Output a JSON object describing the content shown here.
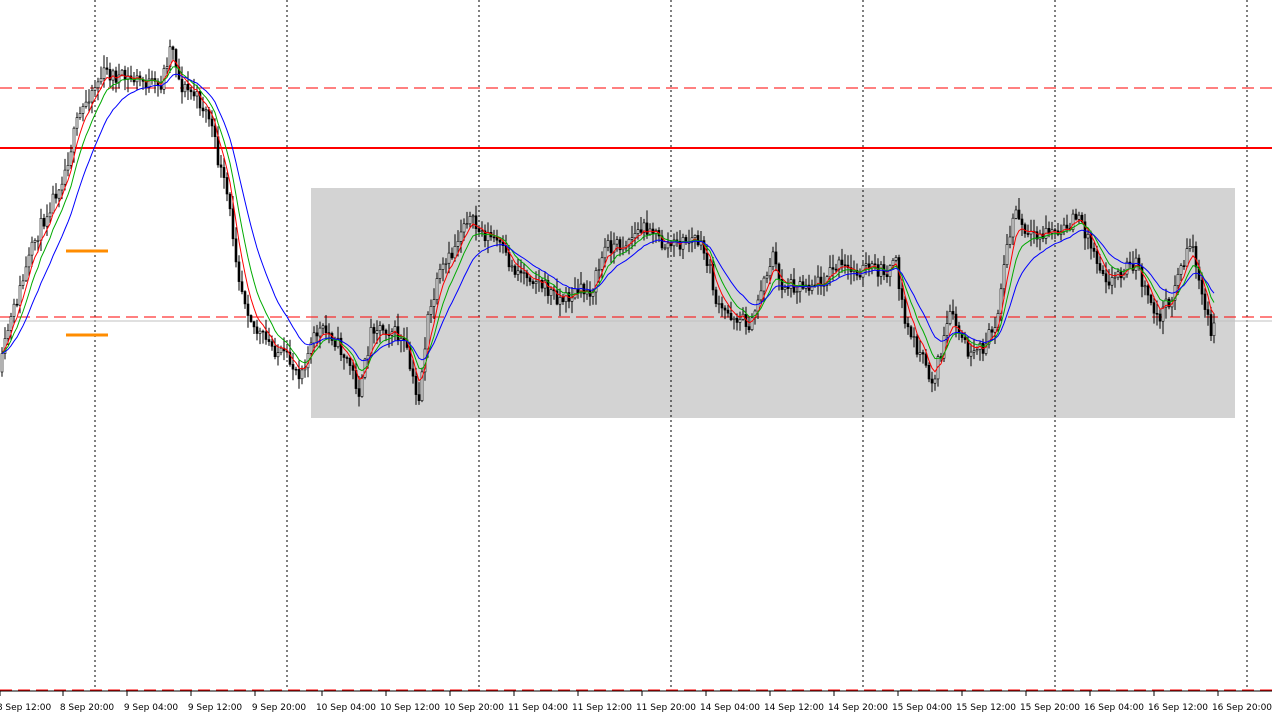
{
  "chart_data": {
    "type": "candlestick",
    "x_tick_labels": [
      "8 Sep 12:00",
      "8 Sep 20:00",
      "9 Sep 04:00",
      "9 Sep 12:00",
      "9 Sep 20:00",
      "10 Sep 04:00",
      "10 Sep 12:00",
      "10 Sep 20:00",
      "11 Sep 04:00",
      "11 Sep 12:00",
      "11 Sep 20:00",
      "14 Sep 04:00",
      "14 Sep 12:00",
      "14 Sep 20:00",
      "15 Sep 04:00",
      "15 Sep 12:00",
      "15 Sep 20:00",
      "16 Sep 04:00",
      "16 Sep 12:00",
      "16 Sep 20:00"
    ],
    "y_axis_labels_visible": false,
    "grid": "vertical dotted at day boundaries",
    "colors": {
      "background": "#ffffff",
      "candle": "#000000",
      "ma_fast": "#ff0000",
      "ma_mid": "#00aa00",
      "ma_slow": "#0000ff",
      "range_box": "#d3d3d3",
      "resistance_line": "#ff0000",
      "dashed_levels": "#ff0000",
      "markers": "#ff8c00",
      "grid": "#000000"
    },
    "series": [
      {
        "id": "ma_fast",
        "style": "line",
        "color": "#ff0000"
      },
      {
        "id": "ma_mid",
        "style": "line",
        "color": "#00aa00"
      },
      {
        "id": "ma_slow",
        "style": "line",
        "color": "#0000ff"
      }
    ],
    "annotations": {
      "horizontal_lines": [
        {
          "style": "solid",
          "color": "#ff0000"
        },
        {
          "style": "dashed",
          "color": "#ff0000"
        },
        {
          "style": "dashed",
          "color": "#ff0000"
        },
        {
          "style": "dashed",
          "color": "#ff0000"
        },
        {
          "style": "solid",
          "color": "#c0c0c0"
        }
      ],
      "range_box": {
        "from": "10 Sep 00:00",
        "to": "16 Sep 20:00",
        "color": "#d3d3d3"
      },
      "markers": [
        {
          "color": "#ff8c00"
        },
        {
          "color": "#ff8c00"
        }
      ]
    }
  }
}
